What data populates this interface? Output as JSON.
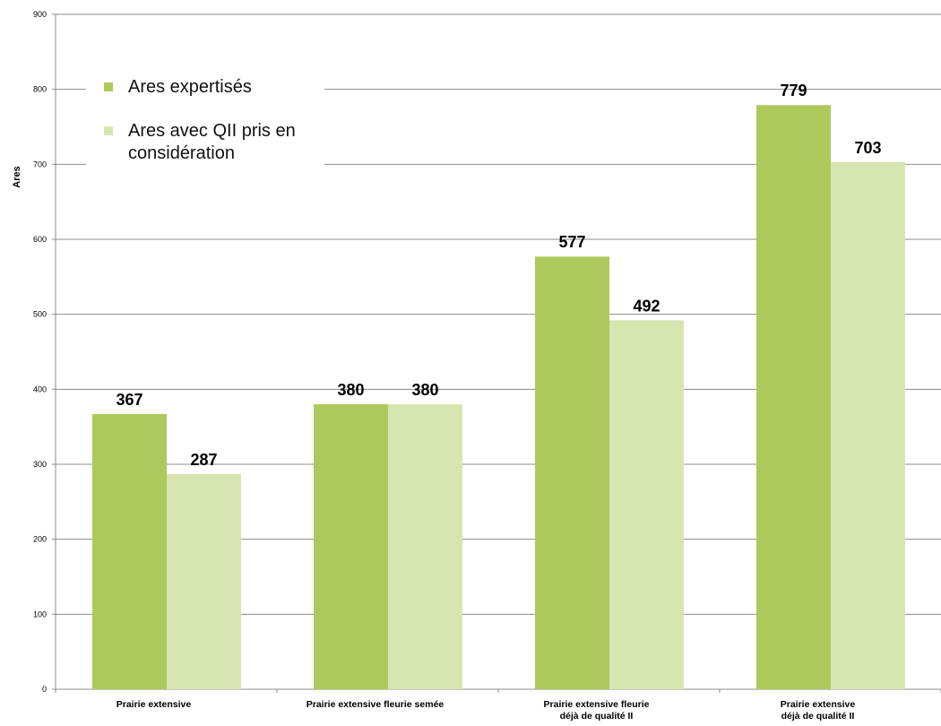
{
  "chart_data": {
    "type": "bar",
    "title": "",
    "xlabel": "",
    "ylabel": "Ares",
    "ylim": [
      0,
      900
    ],
    "yticks": [
      0,
      100,
      200,
      300,
      400,
      500,
      600,
      700,
      800,
      900
    ],
    "grid": true,
    "legend_position": "top-left",
    "categories": [
      [
        "Prairie extensive"
      ],
      [
        "Prairie extensive fleurie semée"
      ],
      [
        "Prairie extensive fleurie",
        "déjà de qualité II"
      ],
      [
        "Prairie extensive",
        "déjà de qualité II"
      ]
    ],
    "series": [
      {
        "name": "Ares expertisés",
        "color": "#adc95c",
        "values": [
          367,
          380,
          577,
          779
        ]
      },
      {
        "name": "Ares avec QII pris en considération",
        "color": "#d7e6b0",
        "values": [
          287,
          380,
          492,
          703
        ]
      }
    ],
    "data_labels": [
      [
        "367",
        "380",
        "577",
        "779"
      ],
      [
        "287",
        "380",
        "492",
        "703"
      ]
    ]
  },
  "legend": {
    "items": [
      {
        "label": "Ares expertisés",
        "color": "#adc95c"
      },
      {
        "label": "Ares avec QII pris en considération",
        "color": "#d7e6b0"
      }
    ]
  }
}
